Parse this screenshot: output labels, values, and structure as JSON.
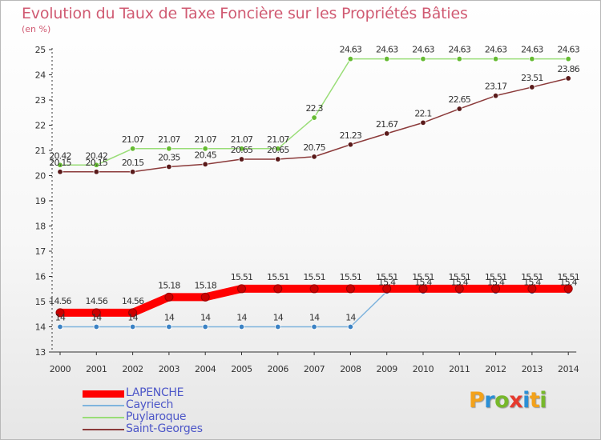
{
  "page": {
    "title": "Evolution du Taux de Taxe Foncière sur les Propriétés Bâties",
    "subtitle": "(en %)",
    "logo_text": "Proxiti",
    "logo_colors": [
      "#f3a21b",
      "#2a8fd6",
      "#77b82b",
      "#e63a2e",
      "#2a8fd6",
      "#f3a21b",
      "#77b82b"
    ]
  },
  "chart_data": {
    "type": "line",
    "x": [
      "2000",
      "2001",
      "2002",
      "2003",
      "2004",
      "2005",
      "2006",
      "2007",
      "2008",
      "2009",
      "2010",
      "2011",
      "2012",
      "2013",
      "2014"
    ],
    "ylim": [
      13,
      25
    ],
    "yticks": [
      13,
      14,
      15,
      16,
      17,
      18,
      19,
      20,
      21,
      22,
      23,
      24,
      25
    ],
    "grid": false,
    "legend_position": "bottom-left",
    "series": [
      {
        "name": "LAPENCHE",
        "color": "#ff0000",
        "marker_color": "#cc0000",
        "emphasis": true,
        "values": [
          14.56,
          14.56,
          14.56,
          15.18,
          15.18,
          15.51,
          15.51,
          15.51,
          15.51,
          15.51,
          15.51,
          15.51,
          15.51,
          15.51,
          15.51
        ],
        "labels": [
          "14.56",
          "14.56",
          "14.56",
          "15.18",
          "15.18",
          "15.51",
          "15.51",
          "15.51",
          "15.51",
          "15.51",
          "15.51",
          "15.51",
          "15.51",
          "15.51",
          "15.51"
        ]
      },
      {
        "name": "Cayriech",
        "color": "#7fb4dd",
        "marker_color": "#3b82c4",
        "emphasis": false,
        "values": [
          14,
          14,
          14,
          14,
          14,
          14,
          14,
          14,
          14,
          15.4,
          15.4,
          15.4,
          15.4,
          15.4,
          15.4
        ],
        "labels": [
          "14",
          "14",
          "14",
          "14",
          "14",
          "14",
          "14",
          "14",
          "14",
          "15.4",
          "15.4",
          "15.4",
          "15.4",
          "15.4",
          "15.4"
        ]
      },
      {
        "name": "Puylaroque",
        "color": "#99dd77",
        "marker_color": "#66bb33",
        "emphasis": false,
        "values": [
          20.42,
          20.42,
          21.07,
          21.07,
          21.07,
          21.07,
          21.07,
          22.3,
          24.63,
          24.63,
          24.63,
          24.63,
          24.63,
          24.63,
          24.63
        ],
        "labels": [
          "20.42",
          "20.42",
          "21.07",
          "21.07",
          "21.07",
          "21.07",
          "21.07",
          "22.3",
          "24.63",
          "24.63",
          "24.63",
          "24.63",
          "24.63",
          "24.63",
          "24.63"
        ]
      },
      {
        "name": "Saint-Georges",
        "color": "#8b3a3a",
        "marker_color": "#5a1a1a",
        "emphasis": false,
        "values": [
          20.15,
          20.15,
          20.15,
          20.35,
          20.45,
          20.65,
          20.65,
          20.75,
          21.23,
          21.67,
          22.1,
          22.65,
          23.17,
          23.51,
          23.86
        ],
        "labels": [
          "20.15",
          "20.15",
          "20.15",
          "20.35",
          "20.45",
          "20.65",
          "20.65",
          "20.75",
          "21.23",
          "21.67",
          "22.1",
          "22.65",
          "23.17",
          "23.51",
          "23.86"
        ]
      }
    ]
  }
}
